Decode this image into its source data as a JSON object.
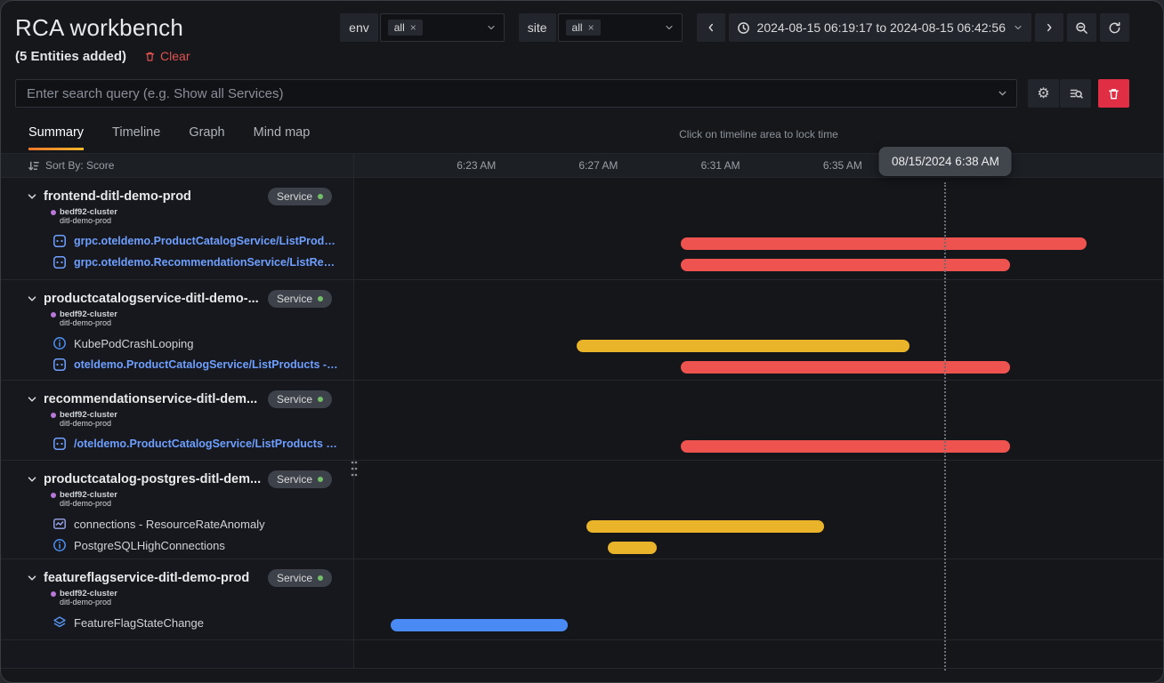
{
  "header": {
    "title": "RCA workbench",
    "entities_summary": "(5 Entities added)",
    "clear_label": "Clear",
    "env_filter": {
      "label": "env",
      "selected": "all"
    },
    "site_filter": {
      "label": "site",
      "selected": "all"
    },
    "time_range": "2024-08-15 06:19:17 to 2024-08-15 06:42:56"
  },
  "search": {
    "placeholder": "Enter search query (e.g. Show all Services)"
  },
  "tabs": {
    "hint": "Click on timeline area to lock time",
    "items": [
      {
        "label": "Summary",
        "active": true
      },
      {
        "label": "Timeline",
        "active": false
      },
      {
        "label": "Graph",
        "active": false
      },
      {
        "label": "Mind map",
        "active": false
      }
    ]
  },
  "timeline": {
    "sort_label": "Sort By: Score",
    "tooltip": "08/15/2024 6:38 AM",
    "cursor_min": 19.37,
    "axis": {
      "start_time": "6:19 AM",
      "total_min": 26.5,
      "ticks": [
        {
          "label": "6:23 AM",
          "min": 4
        },
        {
          "label": "6:27 AM",
          "min": 8
        },
        {
          "label": "6:31 AM",
          "min": 12
        },
        {
          "label": "6:35 AM",
          "min": 16
        }
      ]
    },
    "colors": {
      "red": "#ef5350",
      "yellow": "#e9b32a",
      "blue": "#4a8af4"
    }
  },
  "groups": [
    {
      "title": "frontend-ditl-demo-prod",
      "badge": "Service",
      "cluster": "bedf92-cluster",
      "namespace": "ditl-demo-prod",
      "items": [
        {
          "icon": "api",
          "style": "link",
          "label": "grpc.oteldemo.ProductCatalogService/ListProducts ..."
        },
        {
          "icon": "api",
          "style": "link",
          "label": "grpc.oteldemo.RecommendationService/ListRecom..."
        }
      ],
      "bars": [
        {
          "lane": 0,
          "color": "red",
          "start_min": 10.7,
          "end_min": 24.0
        },
        {
          "lane": 1,
          "color": "red",
          "start_min": 10.7,
          "end_min": 21.5
        }
      ]
    },
    {
      "title": "productcatalogservice-ditl-demo-...",
      "badge": "Service",
      "cluster": "bedf92-cluster",
      "namespace": "ditl-demo-prod",
      "items": [
        {
          "icon": "info",
          "style": "plain",
          "label": "KubePodCrashLooping"
        },
        {
          "icon": "api",
          "style": "link",
          "label": "oteldemo.ProductCatalogService/ListProducts - Erro..."
        }
      ],
      "bars": [
        {
          "lane": 0,
          "color": "yellow",
          "start_min": 7.3,
          "end_min": 18.2
        },
        {
          "lane": 1,
          "color": "red",
          "start_min": 10.7,
          "end_min": 21.5
        }
      ]
    },
    {
      "title": "recommendationservice-ditl-dem...",
      "badge": "Service",
      "cluster": "bedf92-cluster",
      "namespace": "ditl-demo-prod",
      "items": [
        {
          "icon": "api",
          "style": "link",
          "label": "/oteldemo.ProductCatalogService/ListProducts - Err..."
        }
      ],
      "bars": [
        {
          "lane": 0,
          "color": "red",
          "start_min": 10.7,
          "end_min": 21.5
        }
      ]
    },
    {
      "title": "productcatalog-postgres-ditl-dem...",
      "badge": "Service",
      "cluster": "bedf92-cluster",
      "namespace": "ditl-demo-prod",
      "items": [
        {
          "icon": "metric",
          "style": "plain",
          "label": "connections - ResourceRateAnomaly"
        },
        {
          "icon": "info",
          "style": "plain",
          "label": "PostgreSQLHighConnections"
        }
      ],
      "bars": [
        {
          "lane": 0,
          "color": "yellow",
          "start_min": 7.6,
          "end_min": 15.4
        },
        {
          "lane": 1,
          "color": "yellow",
          "start_min": 8.3,
          "end_min": 9.9
        }
      ]
    },
    {
      "title": "featureflagservice-ditl-demo-prod",
      "badge": "Service",
      "cluster": "bedf92-cluster",
      "namespace": "ditl-demo-prod",
      "items": [
        {
          "icon": "layers",
          "style": "plain",
          "label": "FeatureFlagStateChange"
        }
      ],
      "bars": [
        {
          "lane": 0,
          "color": "blue",
          "start_min": 1.2,
          "end_min": 7.0
        }
      ]
    }
  ]
}
